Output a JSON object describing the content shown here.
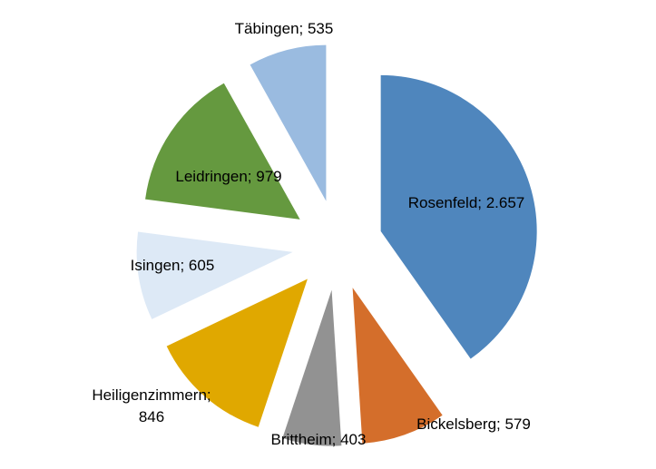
{
  "chart_data": {
    "type": "pie",
    "exploded": true,
    "categories": [
      "Rosenfeld",
      "Bickelsberg",
      "Brittheim",
      "Heiligenzimmern",
      "Isingen",
      "Leidringen",
      "Täbingen"
    ],
    "values": [
      2657,
      579,
      403,
      846,
      605,
      979,
      535
    ],
    "labels": [
      [
        "Rosenfeld; 2.657"
      ],
      [
        "Bickelsberg; 579"
      ],
      [
        "Brittheim; 403"
      ],
      [
        "Heiligenzimmern;",
        "846"
      ],
      [
        "Isingen; 605"
      ],
      [
        "Leidringen; 979"
      ],
      [
        "Täbingen; 535"
      ]
    ],
    "colors": [
      "#4f86bd",
      "#d46e2b",
      "#929292",
      "#e0a800",
      "#dde9f6",
      "#65993f",
      "#9abbe0"
    ],
    "title": "",
    "legend": "none",
    "start_angle": "12 o'clock",
    "direction": "clockwise"
  }
}
